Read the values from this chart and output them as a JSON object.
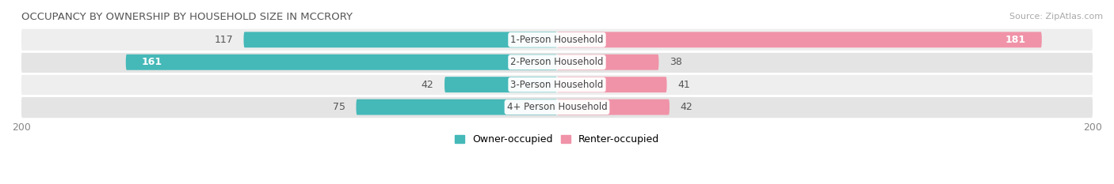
{
  "title": "OCCUPANCY BY OWNERSHIP BY HOUSEHOLD SIZE IN MCCRORY",
  "source": "Source: ZipAtlas.com",
  "categories": [
    "1-Person Household",
    "2-Person Household",
    "3-Person Household",
    "4+ Person Household"
  ],
  "owner_values": [
    117,
    161,
    42,
    75
  ],
  "renter_values": [
    181,
    38,
    41,
    42
  ],
  "owner_color": "#45b8b8",
  "renter_color": "#f093a8",
  "background_color": "#ffffff",
  "row_bg_colors": [
    "#eeeeee",
    "#e4e4e4",
    "#eeeeee",
    "#e4e4e4"
  ],
  "xlim": [
    -200,
    200
  ],
  "label_fontsize": 9,
  "title_fontsize": 9.5,
  "source_fontsize": 8,
  "legend_fontsize": 9,
  "tick_fontsize": 9,
  "category_fontsize": 8.5,
  "owner_label_inside_threshold": 130,
  "renter_label_inside_threshold": 130
}
